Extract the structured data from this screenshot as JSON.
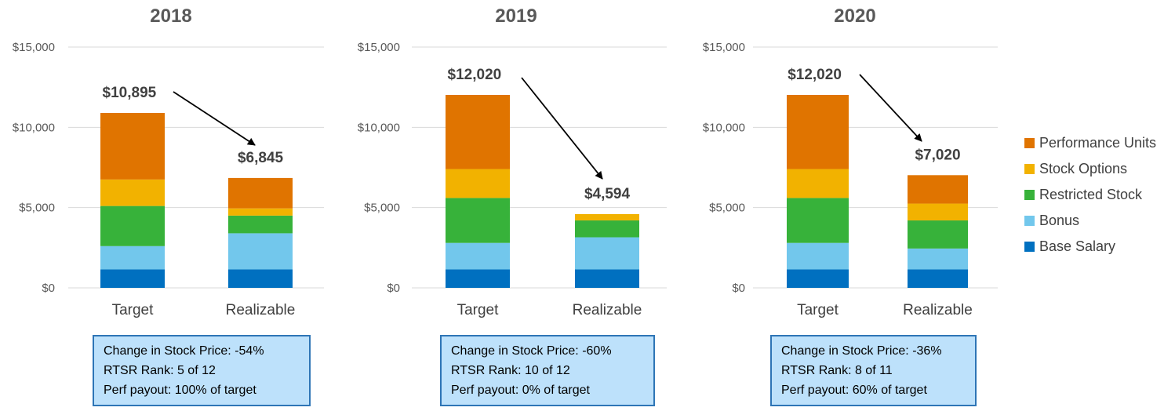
{
  "chart_data": {
    "type": "bar",
    "stacked": true,
    "grid": true,
    "legend_position": "right",
    "y_ticks": [
      "$0",
      "$5,000",
      "$10,000",
      "$15,000"
    ],
    "ylim": [
      0,
      15000
    ],
    "categories": [
      "Target",
      "Realizable"
    ],
    "series_names": [
      "Base Salary",
      "Bonus",
      "Restricted Stock",
      "Stock Options",
      "Performance Units"
    ],
    "colors": {
      "Base Salary": "#0070c0",
      "Bonus": "#72c7ec",
      "Restricted Stock": "#37b23a",
      "Stock Options": "#f2b200",
      "Performance Units": "#e07400"
    },
    "panels": [
      {
        "title": "2018",
        "totals": [
          "$10,895",
          "$6,845"
        ],
        "series": [
          {
            "name": "Base Salary",
            "values": [
              1150,
              1150
            ]
          },
          {
            "name": "Bonus",
            "values": [
              1450,
              2250
            ]
          },
          {
            "name": "Restricted Stock",
            "values": [
              2500,
              1100
            ]
          },
          {
            "name": "Stock Options",
            "values": [
              1650,
              450
            ]
          },
          {
            "name": "Performance Units",
            "values": [
              4145,
              1895
            ]
          }
        ],
        "notes": [
          "Change in Stock Price: -54%",
          "RTSR Rank: 5 of 12",
          "Perf payout: 100% of target"
        ]
      },
      {
        "title": "2019",
        "totals": [
          "$12,020",
          "$4,594"
        ],
        "series": [
          {
            "name": "Base Salary",
            "values": [
              1150,
              1150
            ]
          },
          {
            "name": "Bonus",
            "values": [
              1650,
              2000
            ]
          },
          {
            "name": "Restricted Stock",
            "values": [
              2800,
              1050
            ]
          },
          {
            "name": "Stock Options",
            "values": [
              1800,
              394
            ]
          },
          {
            "name": "Performance Units",
            "values": [
              4620,
              0
            ]
          }
        ],
        "notes": [
          "Change in Stock Price: -60%",
          "RTSR Rank: 10 of 12",
          "Perf payout: 0% of target"
        ]
      },
      {
        "title": "2020",
        "totals": [
          "$12,020",
          "$7,020"
        ],
        "series": [
          {
            "name": "Base Salary",
            "values": [
              1150,
              1150
            ]
          },
          {
            "name": "Bonus",
            "values": [
              1650,
              1300
            ]
          },
          {
            "name": "Restricted Stock",
            "values": [
              2800,
              1750
            ]
          },
          {
            "name": "Stock Options",
            "values": [
              1800,
              1050
            ]
          },
          {
            "name": "Performance Units",
            "values": [
              4620,
              1770
            ]
          }
        ],
        "notes": [
          "Change in Stock Price: -36%",
          "RTSR Rank: 8 of 11",
          "Perf payout: 60% of target"
        ]
      }
    ]
  }
}
